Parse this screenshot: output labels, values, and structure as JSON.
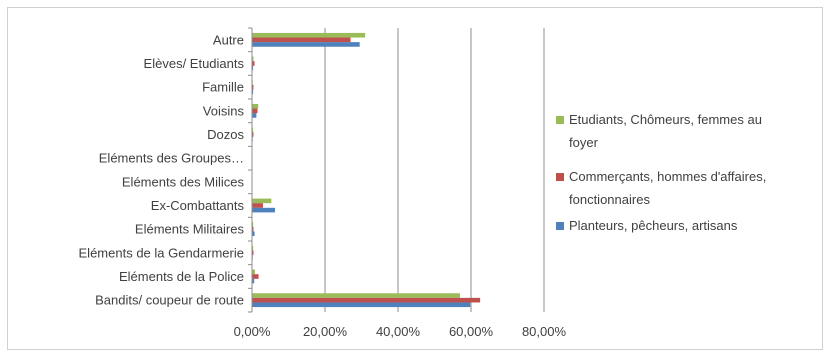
{
  "chart_data": {
    "type": "bar",
    "orientation": "horizontal",
    "title": "",
    "xlabel": "",
    "ylabel": "",
    "xlim": [
      0,
      0.8
    ],
    "x_ticks": [
      "0,00%",
      "20,00%",
      "40,00%",
      "60,00%",
      "80,00%"
    ],
    "categories": [
      "Autre",
      "Elèves/ Etudiants",
      "Famille",
      "Voisins",
      "Dozos",
      "Eléments des Groupes…",
      "Eléments des Milices",
      "Ex-Combattants",
      "Eléments Militaires",
      "Eléments de la Gendarmerie",
      "Eléments de la Police",
      "Bandits/ coupeur de route"
    ],
    "series": [
      {
        "name": "Etudiants, Chômeurs, femmes au foyer",
        "legend_lines": [
          "Etudiants, Chômeurs, femmes au",
          "foyer"
        ],
        "color": "#9bbb59",
        "values": [
          0.31,
          0.004,
          0.002,
          0.017,
          0.003,
          0.0,
          0.0,
          0.053,
          0.003,
          0.003,
          0.008,
          0.57
        ]
      },
      {
        "name": "Commerçants, hommes d'affaires, fonctionnaires",
        "legend_lines": [
          "Commerçants, hommes d'affaires,",
          "fonctionnaires"
        ],
        "color": "#c0504d",
        "values": [
          0.27,
          0.007,
          0.004,
          0.015,
          0.004,
          0.0,
          0.0,
          0.03,
          0.004,
          0.004,
          0.018,
          0.625
        ]
      },
      {
        "name": "Planteurs, pêcheurs, artisans",
        "legend_lines": [
          "Planteurs, pêcheurs, artisans"
        ],
        "color": "#4f81bd",
        "values": [
          0.295,
          0.003,
          0.003,
          0.012,
          0.002,
          0.0,
          0.0,
          0.063,
          0.007,
          0.002,
          0.006,
          0.598
        ]
      }
    ],
    "grid": true,
    "legend_position": "right"
  }
}
